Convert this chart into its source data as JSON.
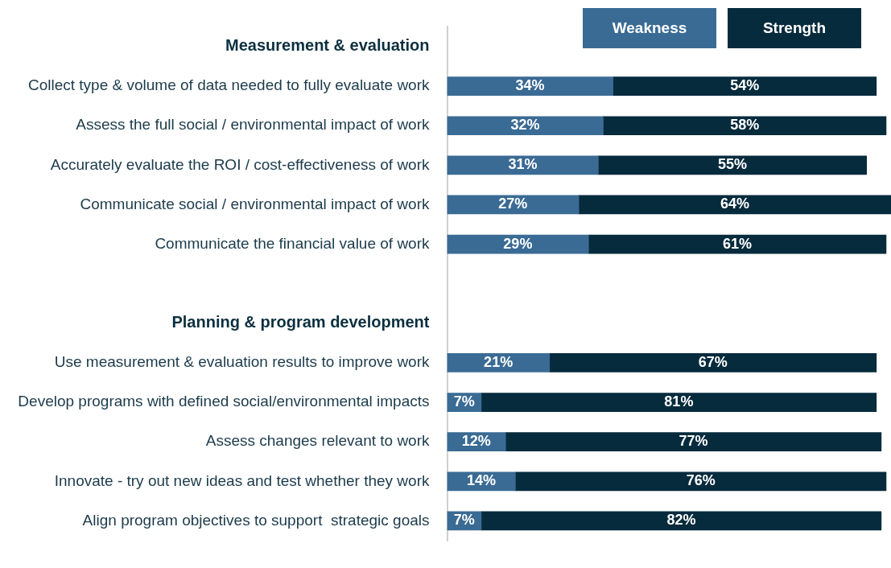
{
  "chart_data": {
    "type": "bar",
    "orientation": "horizontal",
    "stacked": true,
    "legend": "top right",
    "tick_labels": "y",
    "grid": false,
    "categories": [
      "Measurement & evaluation",
      "Collect type & volume of data needed to fully evaluate work",
      "Assess the full social / environmental impact of work",
      "Accurately evaluate the ROI / cost-effectiveness of work",
      "Communicate social / environmental impact of work",
      "Communicate the financial value of work",
      null,
      "Planning & program development",
      "Use measurement & evaluation results to improve work",
      "Develop programs with defined social/environmental impacts",
      "Assess changes relevant to work",
      "Innovate - try out new ideas and test whether they work",
      "Align program objectives to support  strategic goals"
    ],
    "series": [
      {
        "name": "Weakness",
        "color": "#3a6b94",
        "values": [
          null,
          34,
          32,
          31,
          27,
          29,
          null,
          null,
          21,
          7,
          12,
          14,
          7
        ],
        "value_labels": [
          null,
          "34%",
          "32%",
          "31%",
          "27%",
          "29%",
          null,
          null,
          "21%",
          "7%",
          "12%",
          "14%",
          "7%"
        ]
      },
      {
        "name": "Strength",
        "color": "#062b3d",
        "values": [
          null,
          54,
          58,
          55,
          64,
          61,
          null,
          null,
          67,
          81,
          77,
          76,
          82
        ],
        "value_labels": [
          null,
          "54%",
          "58%",
          "55%",
          "64%",
          "61%",
          null,
          null,
          "67%",
          "81%",
          "77%",
          "76%",
          "82%"
        ]
      }
    ]
  }
}
